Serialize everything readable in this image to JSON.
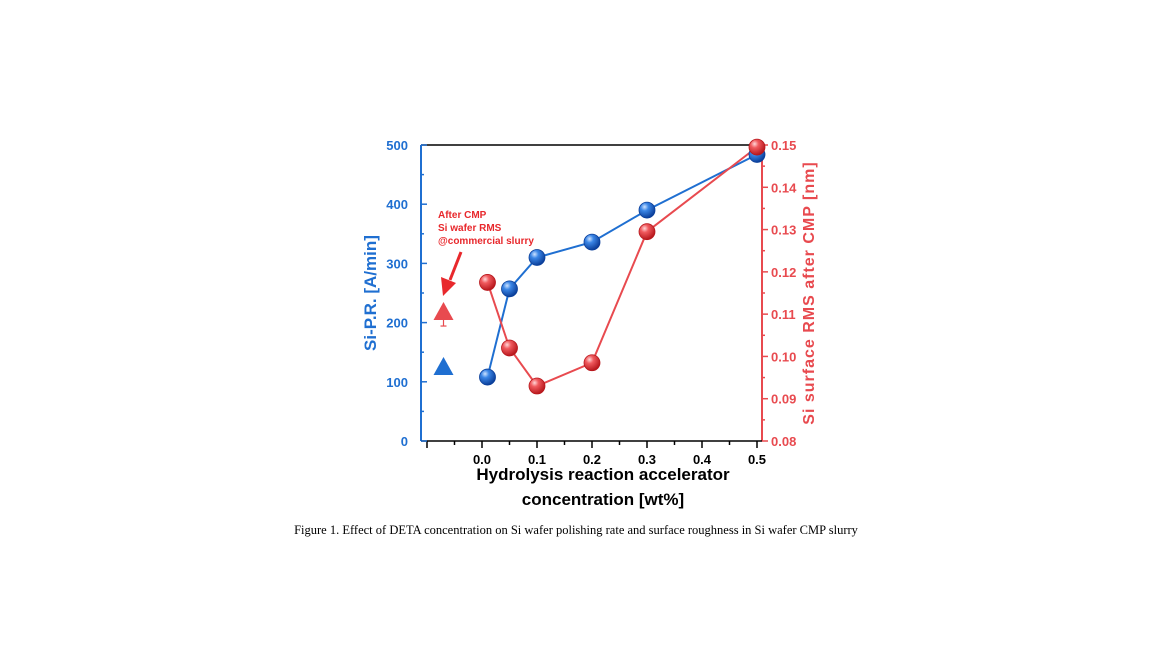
{
  "chart_data": {
    "type": "line",
    "xlabel": [
      "Hydrolysis reaction accelerator",
      "concentration [wt%]"
    ],
    "ylabel_left": "Si-P.R. [A/min]",
    "ylabel_right": "Si surface RMS after CMP [nm]",
    "xlim": [
      -0.1,
      0.5
    ],
    "ylim_left": [
      0,
      500
    ],
    "ylim_right": [
      0.08,
      0.15
    ],
    "xticks": [
      "0.0",
      "0.1",
      "0.2",
      "0.3",
      "0.4",
      "0.5"
    ],
    "yticks_left": [
      "0",
      "100",
      "200",
      "300",
      "400",
      "500"
    ],
    "yticks_right": [
      "0.08",
      "0.09",
      "0.10",
      "0.11",
      "0.12",
      "0.13",
      "0.14",
      "0.15"
    ],
    "grid": false,
    "series": [
      {
        "axis": "left",
        "color": "#1f6fd1",
        "x": [
          0.01,
          0.05,
          0.1,
          0.2,
          0.3,
          0.5
        ],
        "y": [
          108,
          257,
          310,
          336,
          390,
          484
        ]
      },
      {
        "axis": "right",
        "color": "#e84a4f",
        "x": [
          0.01,
          0.05,
          0.1,
          0.2,
          0.3,
          0.5
        ],
        "y": [
          0.1175,
          0.102,
          0.093,
          0.0985,
          0.1295,
          0.1495
        ]
      }
    ],
    "reference": {
      "x": -0.07,
      "left_value": 125,
      "right_value": 0.1105,
      "annotation": [
        "After CMP",
        "Si wafer RMS",
        "@commercial  slurry"
      ]
    }
  },
  "caption": "Figure 1. Effect of DETA concentration on Si wafer polishing rate and surface roughness in Si wafer CMP slurry",
  "colors": {
    "blue": "#1f6fd1",
    "red": "#e84a4f",
    "annotation": "#e8282c"
  }
}
